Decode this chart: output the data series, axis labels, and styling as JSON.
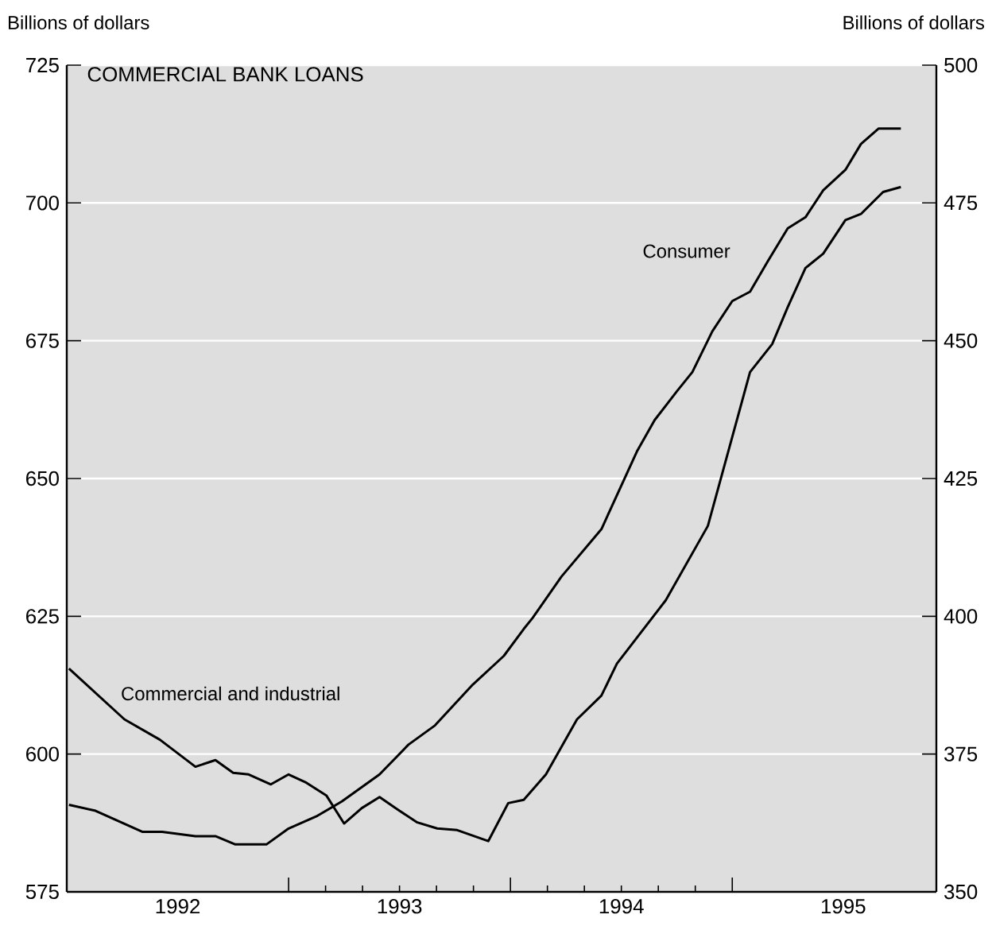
{
  "chart_data": {
    "type": "line",
    "title": "COMMERCIAL BANK LOANS",
    "ylabel": "Billions of dollars",
    "y2label": "Billions of dollars",
    "xlim": [
      1992,
      1995.92
    ],
    "ylim": [
      575,
      725
    ],
    "y2lim": [
      350,
      500
    ],
    "xticks": [
      {
        "value": 1992.5,
        "label": "1992"
      },
      {
        "value": 1993,
        "label": null
      },
      {
        "value": 1993.5,
        "label": "1993"
      },
      {
        "value": 1994,
        "label": null
      },
      {
        "value": 1994.5,
        "label": "1994"
      },
      {
        "value": 1995,
        "label": null
      },
      {
        "value": 1995.5,
        "label": "1995"
      }
    ],
    "yticks": [
      575,
      600,
      625,
      650,
      675,
      700,
      725
    ],
    "y2ticks": [
      350,
      375,
      400,
      425,
      450,
      475,
      500
    ],
    "grid": "y",
    "marker": "none",
    "line_style": "solid",
    "series": [
      {
        "name": "Commercial and industrial",
        "color": "#000000",
        "axis": "y",
        "x": [
          1992.01,
          1992.26,
          1992.42,
          1992.58,
          1992.67,
          1992.75,
          1992.82,
          1992.92,
          1993.0,
          1993.08,
          1993.17,
          1993.25,
          1993.33,
          1993.41,
          1993.5,
          1993.58,
          1993.67,
          1993.76,
          1993.9,
          1993.99,
          1994.06,
          1994.16,
          1994.3,
          1994.41,
          1994.48,
          1994.7,
          1994.89,
          1995.08,
          1995.18,
          1995.25,
          1995.33,
          1995.41,
          1995.51,
          1995.58,
          1995.68,
          1995.76
        ],
        "values": [
          615.5,
          606.3,
          602.6,
          597.7,
          598.9,
          596.6,
          596.3,
          594.5,
          596.3,
          594.8,
          592.5,
          587.4,
          590.2,
          592.2,
          589.7,
          587.6,
          586.5,
          586.2,
          584.2,
          591.1,
          591.7,
          596.3,
          606.3,
          610.6,
          616.4,
          627.9,
          641.4,
          669.3,
          674.4,
          681.1,
          688.2,
          690.8,
          696.9,
          698.0,
          702.0,
          702.9
        ]
      },
      {
        "name": "Consumer",
        "color": "#000000",
        "axis": "y2",
        "x": [
          1992.01,
          1992.13,
          1992.34,
          1992.43,
          1992.58,
          1992.67,
          1992.76,
          1992.9,
          1993.0,
          1993.13,
          1993.24,
          1993.41,
          1993.54,
          1993.66,
          1993.83,
          1993.97,
          1994.06,
          1994.1,
          1994.23,
          1994.41,
          1994.57,
          1994.65,
          1994.75,
          1994.82,
          1994.91,
          1995.0,
          1995.08,
          1995.16,
          1995.25,
          1995.33,
          1995.41,
          1995.51,
          1995.58,
          1995.66,
          1995.76
        ],
        "values": [
          365.8,
          364.7,
          360.9,
          360.9,
          360.1,
          360.1,
          358.6,
          358.6,
          361.5,
          363.8,
          366.4,
          371.3,
          376.7,
          380.2,
          387.6,
          392.8,
          397.7,
          399.7,
          407.2,
          415.8,
          429.9,
          435.6,
          440.8,
          444.3,
          451.7,
          457.2,
          458.9,
          464.4,
          470.4,
          472.4,
          477.3,
          481.0,
          485.7,
          488.5,
          488.5
        ]
      }
    ]
  }
}
